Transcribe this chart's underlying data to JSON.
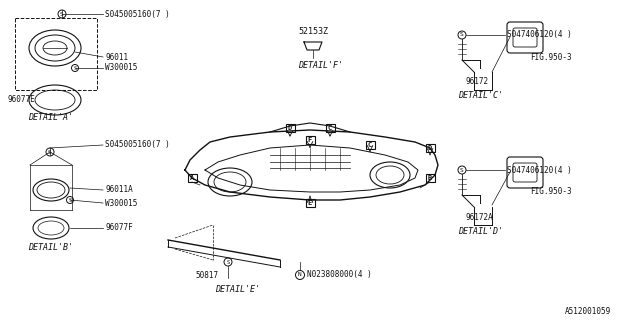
{
  "bg_color": "#ffffff",
  "line_color": "#111111",
  "part_number": "A512001059",
  "labels": {
    "detail_a": "DETAIL'A'",
    "detail_b": "DETAIL'B'",
    "detail_c": "DETAIL'C'",
    "detail_d": "DETAIL'D'",
    "detail_e": "DETAIL'E'",
    "detail_f": "DETAIL'F'",
    "part_96011": "96011",
    "part_96011a": "96011A",
    "part_96077e": "96077E",
    "part_96077f": "96077F",
    "part_w300015": "W300015",
    "part_50817": "50817",
    "part_96172": "96172",
    "part_96172a": "96172A",
    "part_52153z": "52153Z",
    "bolt_a": "S045005160(7 )",
    "bolt_b": "S045005160(7 )",
    "bolt_c": "S047406120(4 )",
    "bolt_d": "S047406120(4 )",
    "bolt_n": "N023808000(4 )",
    "fig_950_3": "FIG.950-3"
  }
}
